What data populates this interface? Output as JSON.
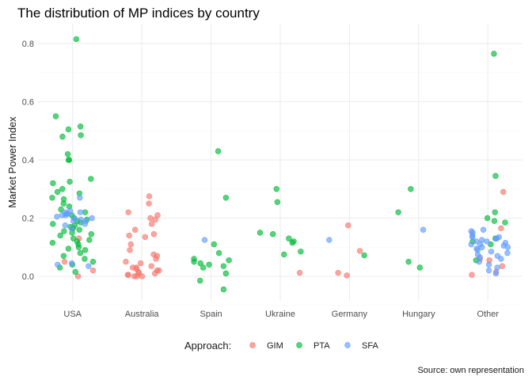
{
  "chart_data": {
    "type": "scatter",
    "title": "The distribution of MP indices by country",
    "xlabel": "",
    "ylabel": "Market Power Index",
    "caption": "Source: own representation",
    "categories": [
      "USA",
      "Australia",
      "Spain",
      "Ukraine",
      "Germany",
      "Hungary",
      "Other"
    ],
    "y_ticks": [
      "0.0",
      "0.2",
      "0.4",
      "0.6",
      "0.8"
    ],
    "y_tick_values": [
      0,
      0.2,
      0.4,
      0.6,
      0.8
    ],
    "ylim": [
      -0.08,
      0.85
    ],
    "grid": true,
    "jitter": true,
    "legend": {
      "title": "Approach:",
      "position": "bottom",
      "entries": [
        "GIM",
        "PTA",
        "SFA"
      ]
    },
    "colors": {
      "GIM": "#F8766D",
      "PTA": "#00BA38",
      "SFA": "#619CFF"
    },
    "series": [
      {
        "name": "GIM",
        "points": [
          [
            "USA",
            0.13
          ],
          [
            "USA",
            0.05
          ],
          [
            "USA",
            0.0
          ],
          [
            "USA",
            0.02
          ],
          [
            "Australia",
            0.275
          ],
          [
            "Australia",
            0.25
          ],
          [
            "Australia",
            0.22
          ],
          [
            "Australia",
            0.21
          ],
          [
            "Australia",
            0.2
          ],
          [
            "Australia",
            0.195
          ],
          [
            "Australia",
            0.18
          ],
          [
            "Australia",
            0.16
          ],
          [
            "Australia",
            0.145
          ],
          [
            "Australia",
            0.14
          ],
          [
            "Australia",
            0.135
          ],
          [
            "Australia",
            0.11
          ],
          [
            "Australia",
            0.09
          ],
          [
            "Australia",
            0.075
          ],
          [
            "Australia",
            0.07
          ],
          [
            "Australia",
            0.06
          ],
          [
            "Australia",
            0.05
          ],
          [
            "Australia",
            0.045
          ],
          [
            "Australia",
            0.035
          ],
          [
            "Australia",
            0.03
          ],
          [
            "Australia",
            0.03
          ],
          [
            "Australia",
            0.025
          ],
          [
            "Australia",
            0.02
          ],
          [
            "Australia",
            0.02
          ],
          [
            "Australia",
            0.015
          ],
          [
            "Australia",
            0.01
          ],
          [
            "Australia",
            0.01
          ],
          [
            "Australia",
            0.005
          ],
          [
            "Australia",
            0.005
          ],
          [
            "Australia",
            0.0
          ],
          [
            "Australia",
            0.0
          ],
          [
            "Australia",
            0.0
          ],
          [
            "Ukraine",
            0.012
          ],
          [
            "Germany",
            0.175
          ],
          [
            "Germany",
            0.087
          ],
          [
            "Germany",
            0.012
          ],
          [
            "Germany",
            0.003
          ],
          [
            "Other",
            0.29
          ],
          [
            "Other",
            0.165
          ],
          [
            "Other",
            0.06
          ],
          [
            "Other",
            0.055
          ],
          [
            "Other",
            0.035
          ],
          [
            "Other",
            0.015
          ],
          [
            "Other",
            0.005
          ]
        ]
      },
      {
        "name": "PTA",
        "points": [
          [
            "USA",
            0.815
          ],
          [
            "USA",
            0.55
          ],
          [
            "USA",
            0.515
          ],
          [
            "USA",
            0.505
          ],
          [
            "USA",
            0.485
          ],
          [
            "USA",
            0.48
          ],
          [
            "USA",
            0.42
          ],
          [
            "USA",
            0.4
          ],
          [
            "USA",
            0.4
          ],
          [
            "USA",
            0.335
          ],
          [
            "USA",
            0.325
          ],
          [
            "USA",
            0.32
          ],
          [
            "USA",
            0.3
          ],
          [
            "USA",
            0.29
          ],
          [
            "USA",
            0.285
          ],
          [
            "USA",
            0.27
          ],
          [
            "USA",
            0.265
          ],
          [
            "USA",
            0.25
          ],
          [
            "USA",
            0.24
          ],
          [
            "USA",
            0.23
          ],
          [
            "USA",
            0.22
          ],
          [
            "USA",
            0.21
          ],
          [
            "USA",
            0.2
          ],
          [
            "USA",
            0.195
          ],
          [
            "USA",
            0.19
          ],
          [
            "USA",
            0.185
          ],
          [
            "USA",
            0.18
          ],
          [
            "USA",
            0.175
          ],
          [
            "USA",
            0.17
          ],
          [
            "USA",
            0.165
          ],
          [
            "USA",
            0.16
          ],
          [
            "USA",
            0.155
          ],
          [
            "USA",
            0.15
          ],
          [
            "USA",
            0.145
          ],
          [
            "USA",
            0.14
          ],
          [
            "USA",
            0.13
          ],
          [
            "USA",
            0.125
          ],
          [
            "USA",
            0.12
          ],
          [
            "USA",
            0.115
          ],
          [
            "USA",
            0.11
          ],
          [
            "USA",
            0.1
          ],
          [
            "USA",
            0.095
          ],
          [
            "USA",
            0.09
          ],
          [
            "USA",
            0.08
          ],
          [
            "USA",
            0.07
          ],
          [
            "USA",
            0.06
          ],
          [
            "USA",
            0.05
          ],
          [
            "USA",
            0.04
          ],
          [
            "USA",
            0.03
          ],
          [
            "USA",
            0.015
          ],
          [
            "Spain",
            0.43
          ],
          [
            "Spain",
            0.27
          ],
          [
            "Spain",
            0.11
          ],
          [
            "Spain",
            0.08
          ],
          [
            "Spain",
            0.06
          ],
          [
            "Spain",
            0.055
          ],
          [
            "Spain",
            0.05
          ],
          [
            "Spain",
            0.045
          ],
          [
            "Spain",
            0.04
          ],
          [
            "Spain",
            0.035
          ],
          [
            "Spain",
            0.03
          ],
          [
            "Spain",
            0.01
          ],
          [
            "Spain",
            -0.015
          ],
          [
            "Spain",
            -0.045
          ],
          [
            "Ukraine",
            0.3
          ],
          [
            "Ukraine",
            0.255
          ],
          [
            "Ukraine",
            0.15
          ],
          [
            "Ukraine",
            0.145
          ],
          [
            "Ukraine",
            0.13
          ],
          [
            "Ukraine",
            0.12
          ],
          [
            "Ukraine",
            0.115
          ],
          [
            "Ukraine",
            0.085
          ],
          [
            "Ukraine",
            0.075
          ],
          [
            "Germany",
            0.072
          ],
          [
            "Hungary",
            0.3
          ],
          [
            "Hungary",
            0.22
          ],
          [
            "Hungary",
            0.05
          ],
          [
            "Hungary",
            0.03
          ],
          [
            "Other",
            0.765
          ],
          [
            "Other",
            0.345
          ],
          [
            "Other",
            0.22
          ],
          [
            "Other",
            0.2
          ],
          [
            "Other",
            0.19
          ],
          [
            "Other",
            0.185
          ],
          [
            "Other",
            0.13
          ],
          [
            "Other",
            0.12
          ],
          [
            "Other",
            0.11
          ],
          [
            "Other",
            0.055
          ]
        ]
      },
      {
        "name": "SFA",
        "points": [
          [
            "USA",
            0.27
          ],
          [
            "USA",
            0.225
          ],
          [
            "USA",
            0.22
          ],
          [
            "USA",
            0.22
          ],
          [
            "USA",
            0.215
          ],
          [
            "USA",
            0.215
          ],
          [
            "USA",
            0.21
          ],
          [
            "USA",
            0.21
          ],
          [
            "USA",
            0.205
          ],
          [
            "USA",
            0.2
          ],
          [
            "USA",
            0.2
          ],
          [
            "USA",
            0.195
          ],
          [
            "USA",
            0.19
          ],
          [
            "USA",
            0.19
          ],
          [
            "USA",
            0.18
          ],
          [
            "USA",
            0.175
          ],
          [
            "USA",
            0.165
          ],
          [
            "USA",
            0.045
          ],
          [
            "USA",
            0.04
          ],
          [
            "USA",
            0.035
          ],
          [
            "Spain",
            0.125
          ],
          [
            "Germany",
            0.125
          ],
          [
            "Hungary",
            0.16
          ],
          [
            "Other",
            0.16
          ],
          [
            "Other",
            0.155
          ],
          [
            "Other",
            0.15
          ],
          [
            "Other",
            0.14
          ],
          [
            "Other",
            0.135
          ],
          [
            "Other",
            0.135
          ],
          [
            "Other",
            0.13
          ],
          [
            "Other",
            0.13
          ],
          [
            "Other",
            0.125
          ],
          [
            "Other",
            0.12
          ],
          [
            "Other",
            0.12
          ],
          [
            "Other",
            0.115
          ],
          [
            "Other",
            0.11
          ],
          [
            "Other",
            0.11
          ],
          [
            "Other",
            0.105
          ],
          [
            "Other",
            0.1
          ],
          [
            "Other",
            0.1
          ],
          [
            "Other",
            0.095
          ],
          [
            "Other",
            0.09
          ],
          [
            "Other",
            0.085
          ],
          [
            "Other",
            0.08
          ],
          [
            "Other",
            0.075
          ],
          [
            "Other",
            0.07
          ],
          [
            "Other",
            0.065
          ],
          [
            "Other",
            0.06
          ],
          [
            "Other",
            0.05
          ],
          [
            "Other",
            0.04
          ],
          [
            "Other",
            0.03
          ],
          [
            "Other",
            0.02
          ],
          [
            "Other",
            0.01
          ]
        ]
      }
    ]
  }
}
